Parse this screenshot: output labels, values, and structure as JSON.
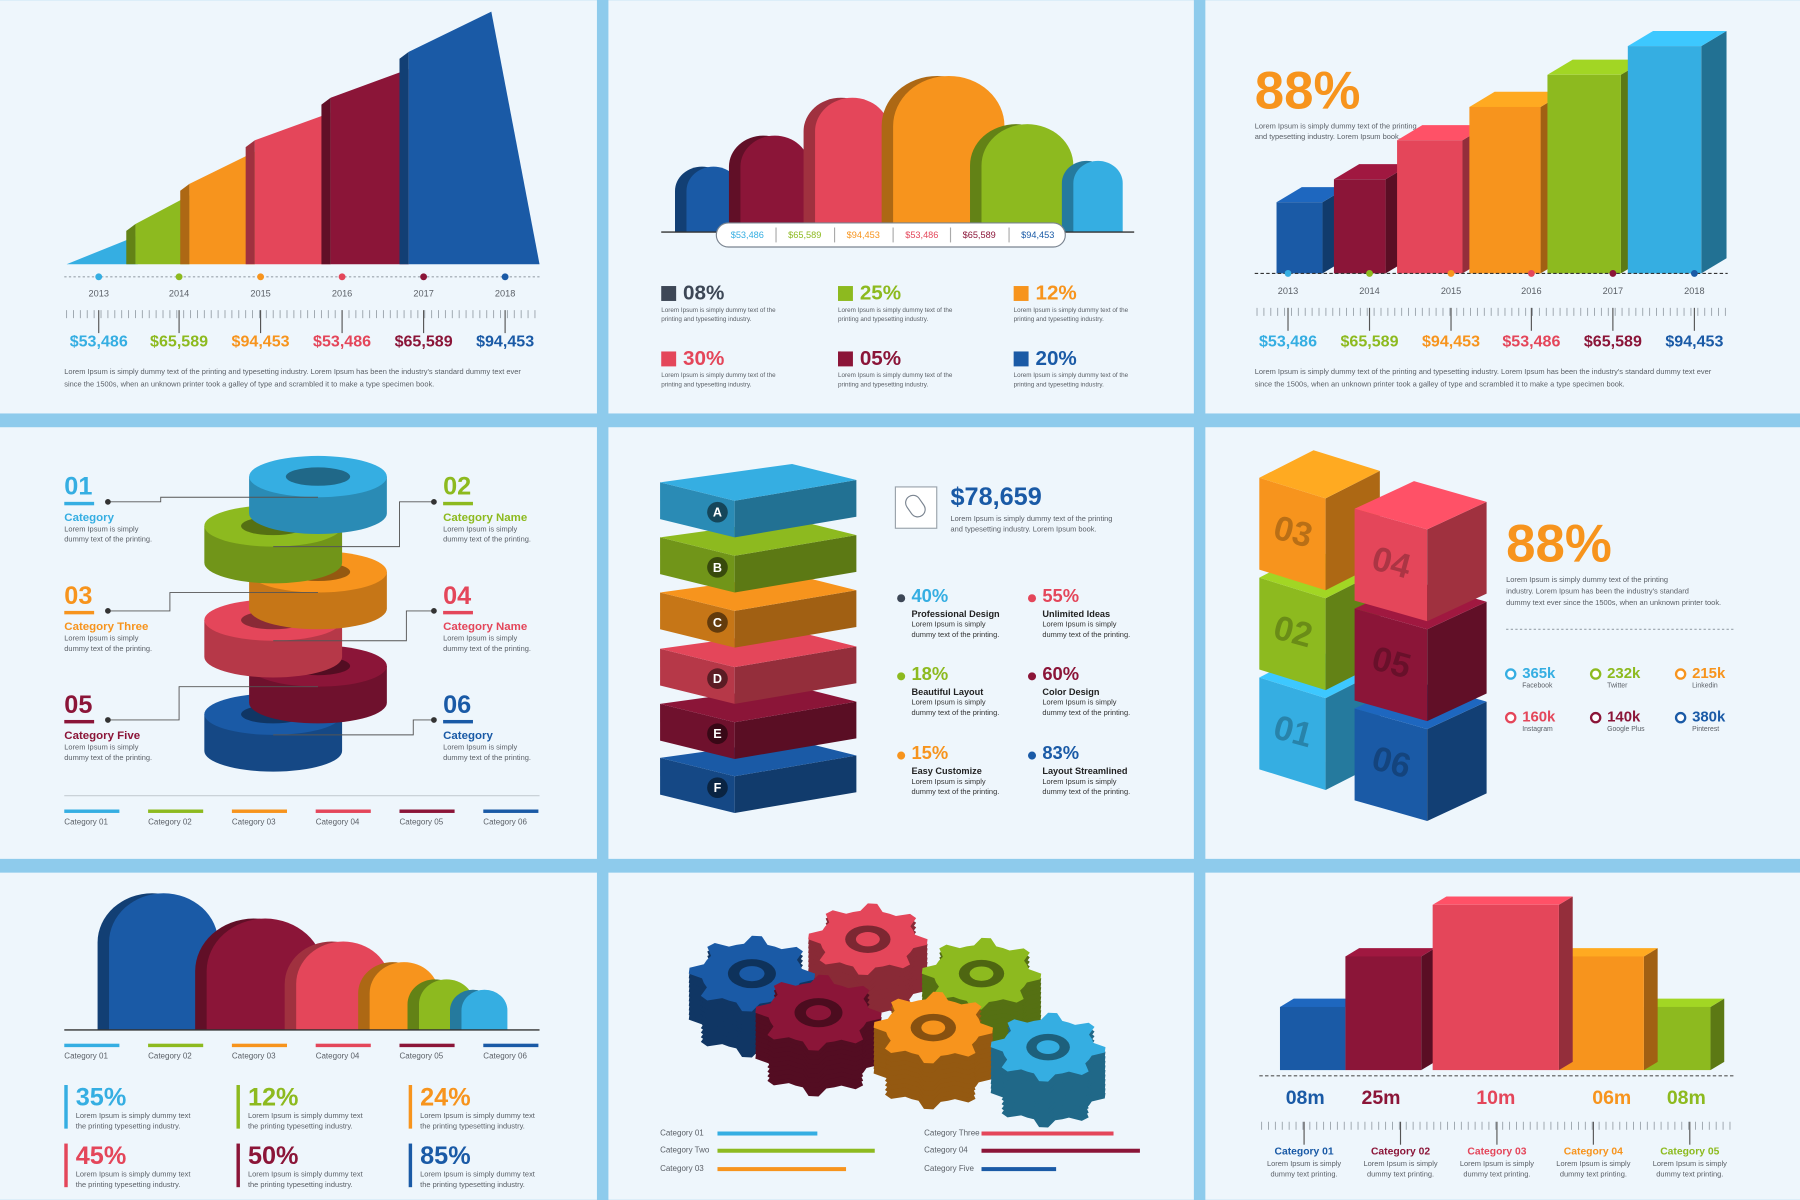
{
  "panel1": {
    "years": [
      "2013",
      "2014",
      "2015",
      "2016",
      "2017",
      "2018"
    ],
    "values": [
      "$53,486",
      "$65,589",
      "$94,453",
      "$53,486",
      "$65,589",
      "$94,453"
    ],
    "description": [
      "Lorem Ipsum is simply dummy text of the printing and typesetting industry. Lorem Ipsum has been the industry's standard dummy text ever",
      "since the 1500s, when an unknown printer took a galley of type and scrambled it to make a type specimen book."
    ]
  },
  "panel2": {
    "values": [
      "$53,486",
      "$65,589",
      "$94,453",
      "$53,486",
      "$65,589",
      "$94,453"
    ],
    "stats": [
      {
        "value": "08%",
        "text": [
          "Lorem Ipsum is simply dummy text of the",
          "printing and typesetting industry."
        ]
      },
      {
        "value": "25%",
        "text": [
          "Lorem Ipsum is simply dummy text of the",
          "printing and typesetting industry."
        ]
      },
      {
        "value": "12%",
        "text": [
          "Lorem Ipsum is simply dummy text of the",
          "printing and typesetting industry."
        ]
      },
      {
        "value": "30%",
        "text": [
          "Lorem Ipsum is simply dummy text of the",
          "printing and typesetting industry."
        ]
      },
      {
        "value": "05%",
        "text": [
          "Lorem Ipsum is simply dummy text of the",
          "printing and typesetting industry."
        ]
      },
      {
        "value": "20%",
        "text": [
          "Lorem Ipsum is simply dummy text of the",
          "printing and typesetting industry."
        ]
      }
    ]
  },
  "panel3": {
    "headline": "88%",
    "headline_text": [
      "Lorem Ipsum is simply dummy text of the printing",
      "and typesetting industry. Lorem Ipsum book."
    ],
    "years": [
      "2013",
      "2014",
      "2015",
      "2016",
      "2017",
      "2018"
    ],
    "values": [
      "$53,486",
      "$65,589",
      "$94,453",
      "$53,486",
      "$65,589",
      "$94,453"
    ],
    "description": [
      "Lorem Ipsum is simply dummy text of the printing and typesetting industry. Lorem Ipsum has been the industry's standard dummy text ever",
      "since the 1500s, when an unknown printer took a galley of type and scrambled it to make a type specimen book."
    ]
  },
  "panel4": {
    "items": [
      {
        "number": "01",
        "title": "Category",
        "text": [
          "Lorem Ipsum is simply",
          "dummy text of the printing."
        ]
      },
      {
        "number": "02",
        "title": "Category Name",
        "text": [
          "Lorem Ipsum is simply",
          "dummy text of the printing."
        ]
      },
      {
        "number": "03",
        "title": "Category Three",
        "text": [
          "Lorem Ipsum is simply",
          "dummy text of the printing."
        ]
      },
      {
        "number": "04",
        "title": "Category Name",
        "text": [
          "Lorem Ipsum is simply",
          "dummy text of the printing."
        ]
      },
      {
        "number": "05",
        "title": "Category Five",
        "text": [
          "Lorem Ipsum is simply",
          "dummy text of the printing."
        ]
      },
      {
        "number": "06",
        "title": "Category",
        "text": [
          "Lorem Ipsum is simply",
          "dummy text of the printing."
        ]
      }
    ],
    "legend": [
      "Category 01",
      "Category 02",
      "Category 03",
      "Category 04",
      "Category 05",
      "Category 06"
    ]
  },
  "panel5": {
    "letters": [
      "A",
      "B",
      "C",
      "D",
      "E",
      "F"
    ],
    "amount": "$78,659",
    "amount_text": [
      "Lorem Ipsum is simply dummy text of the printing",
      "and typesetting industry. Lorem Ipsum book."
    ],
    "stats": [
      {
        "value": "40%",
        "title": "Professional Design",
        "text": [
          "Lorem Ipsum is simply",
          "dummy text of the printing."
        ]
      },
      {
        "value": "55%",
        "title": "Unlimited Ideas",
        "text": [
          "Lorem Ipsum is simply",
          "dummy text of the printing."
        ]
      },
      {
        "value": "18%",
        "title": "Beautiful Layout",
        "text": [
          "Lorem Ipsum is simply",
          "dummy text of the printing."
        ]
      },
      {
        "value": "60%",
        "title": "Color Design",
        "text": [
          "Lorem Ipsum is simply",
          "dummy text of the printing."
        ]
      },
      {
        "value": "15%",
        "title": "Easy Customize",
        "text": [
          "Lorem Ipsum is simply",
          "dummy text of the printing."
        ]
      },
      {
        "value": "83%",
        "title": "Layout Streamlined",
        "text": [
          "Lorem Ipsum is simply",
          "dummy text of the printing."
        ]
      }
    ]
  },
  "panel6": {
    "cubes": [
      "03",
      "04",
      "02",
      "05",
      "01",
      "06"
    ],
    "headline": "88%",
    "headline_text": [
      "Lorem Ipsum is simply dummy text of the printing",
      "industry. Lorem Ipsum has been the industry's standard",
      "dummy text ever since the 1500s, when an unknown printer took."
    ],
    "social": [
      {
        "value": "365k",
        "name": "Facebook"
      },
      {
        "value": "232k",
        "name": "Twitter"
      },
      {
        "value": "215k",
        "name": "Linkedin"
      },
      {
        "value": "160k",
        "name": "Instagram"
      },
      {
        "value": "140k",
        "name": "Google Plus"
      },
      {
        "value": "380k",
        "name": "Pinterest"
      }
    ]
  },
  "panel7": {
    "legend": [
      "Category 01",
      "Category 02",
      "Category 03",
      "Category 04",
      "Category 05",
      "Category 06"
    ],
    "stats": [
      {
        "value": "35%",
        "text": [
          "Lorem Ipsum is simply dummy text",
          "the printing typesetting industry."
        ]
      },
      {
        "value": "12%",
        "text": [
          "Lorem Ipsum is simply dummy text",
          "the printing typesetting industry."
        ]
      },
      {
        "value": "24%",
        "text": [
          "Lorem Ipsum is simply dummy text",
          "the printing typesetting industry."
        ]
      },
      {
        "value": "45%",
        "text": [
          "Lorem Ipsum is simply dummy text",
          "the printing typesetting industry."
        ]
      },
      {
        "value": "50%",
        "text": [
          "Lorem Ipsum is simply dummy text",
          "the printing typesetting industry."
        ]
      },
      {
        "value": "85%",
        "text": [
          "Lorem Ipsum is simply dummy text",
          "the printing typesetting industry."
        ]
      }
    ]
  },
  "panel8": {
    "legend": [
      "Category 01",
      "Category Two",
      "Category 03",
      "Category Three",
      "Category 04",
      "Category Five"
    ]
  },
  "panel9": {
    "values": [
      "08m",
      "25m",
      "10m",
      "06m",
      "08m"
    ],
    "categories": [
      {
        "title": "Category 01",
        "text": [
          "Lorem Ipsum is simply",
          "dummy text printing."
        ]
      },
      {
        "title": "Category 02",
        "text": [
          "Lorem Ipsum is simply",
          "dummy text printing."
        ]
      },
      {
        "title": "Category 03",
        "text": [
          "Lorem Ipsum is simply",
          "dummy text printing."
        ]
      },
      {
        "title": "Category 04",
        "text": [
          "Lorem Ipsum is simply",
          "dummy text printing."
        ]
      },
      {
        "title": "Category 05",
        "text": [
          "Lorem Ipsum is simply",
          "dummy text printing."
        ]
      }
    ]
  }
}
